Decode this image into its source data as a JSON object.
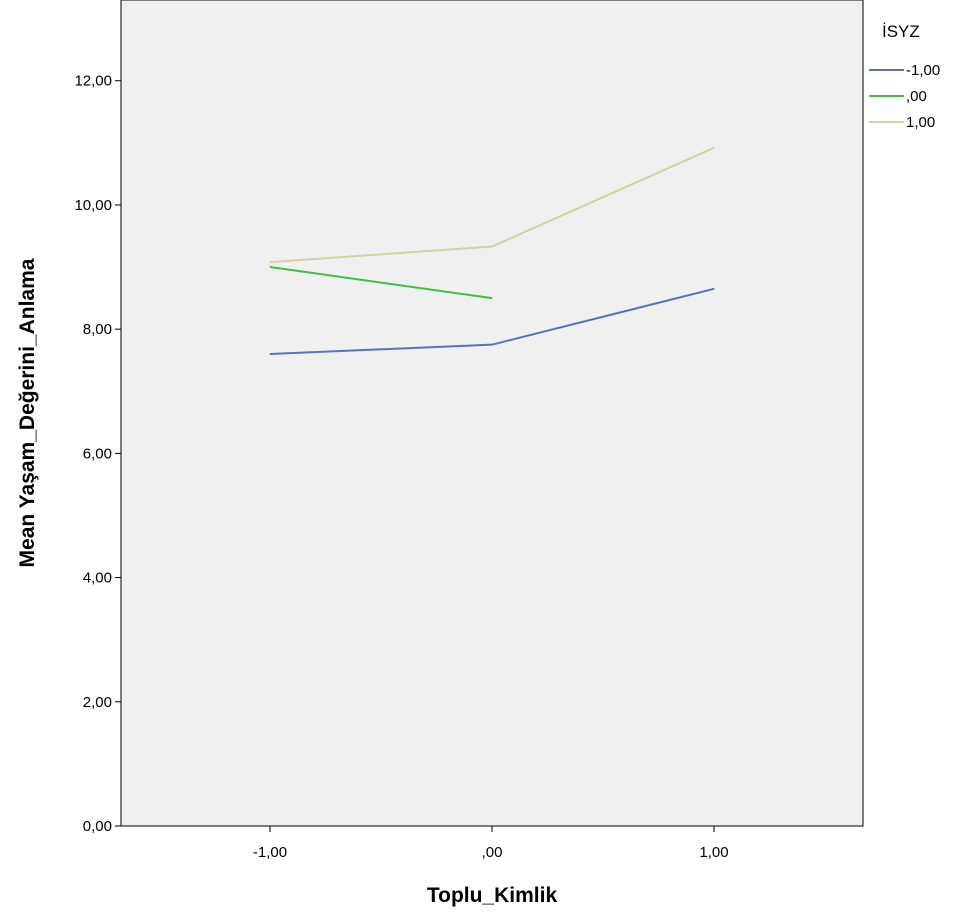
{
  "chart_data": {
    "type": "line",
    "title": "",
    "xlabel": "Toplu_Kimlik",
    "ylabel": "Mean Yaşam_Değerini_Anlama",
    "categories": [
      "-1,00",
      ",00",
      "1,00"
    ],
    "ylim": [
      0,
      13.3
    ],
    "yticks": [
      "0,00",
      "2,00",
      "4,00",
      "6,00",
      "8,00",
      "10,00",
      "12,00"
    ],
    "grid": false,
    "background": "#f0f0f0",
    "legend": {
      "title": "İSYZ",
      "placement": "right"
    },
    "series": [
      {
        "name": "-1,00",
        "color": "#5b6fbf",
        "values": [
          7.6,
          7.75,
          8.65
        ]
      },
      {
        "name": ",00",
        "color": "#3fbf3f",
        "values": [
          9.0,
          8.5,
          null
        ]
      },
      {
        "name": "1,00",
        "color": "#d6d1a1",
        "values": [
          9.08,
          9.33,
          10.92
        ]
      }
    ]
  }
}
